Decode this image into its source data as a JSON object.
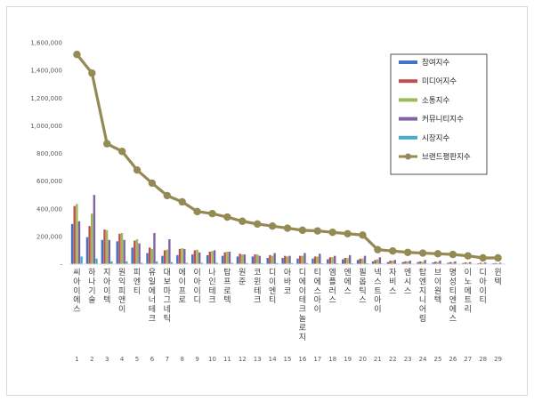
{
  "chart_data": {
    "type": "bar",
    "categories": [
      "씨아이에스",
      "하나기술",
      "지아이텍",
      "원익피앤이",
      "피엔티",
      "유일에너테크",
      "대보마그네틱",
      "에이프로",
      "이아이디",
      "나인테크",
      "탑프로텍",
      "원준",
      "코윈테크",
      "디이엔티",
      "아바코",
      "디에이테크놀로지",
      "티에스아이",
      "엠플러스",
      "엔에스",
      "필옵틱스",
      "넥스트아이",
      "자비스",
      "엔시스",
      "탑엔지니어링",
      "브이원텍",
      "명성티엔에스",
      "이노메트리",
      "디아이티",
      "윈텍"
    ],
    "category_numbers": [
      "1",
      "2",
      "3",
      "4",
      "5",
      "6",
      "7",
      "8",
      "9",
      "10",
      "11",
      "12",
      "13",
      "14",
      "15",
      "16",
      "17",
      "18",
      "19",
      "20",
      "21",
      "22",
      "23",
      "24",
      "25",
      "26",
      "27",
      "28",
      "29"
    ],
    "series": [
      {
        "name": "참여지수",
        "color": "#4472c4",
        "values": [
          290000,
          195000,
          175000,
          165000,
          120000,
          80000,
          60000,
          65000,
          70000,
          65000,
          60000,
          55000,
          55000,
          45000,
          45000,
          40000,
          40000,
          35000,
          35000,
          30000,
          20000,
          15000,
          15000,
          15000,
          12000,
          10000,
          8000,
          6000,
          6000
        ]
      },
      {
        "name": "미디어지수",
        "color": "#c0504d",
        "values": [
          420000,
          275000,
          250000,
          220000,
          170000,
          120000,
          100000,
          110000,
          100000,
          90000,
          85000,
          75000,
          70000,
          65000,
          60000,
          60000,
          55000,
          50000,
          45000,
          40000,
          30000,
          25000,
          20000,
          20000,
          18000,
          15000,
          12000,
          10000,
          8000
        ]
      },
      {
        "name": "소통지수",
        "color": "#9bbb59",
        "values": [
          435000,
          365000,
          245000,
          225000,
          180000,
          110000,
          105000,
          115000,
          105000,
          95000,
          90000,
          70000,
          70000,
          60000,
          55000,
          60000,
          55000,
          50000,
          45000,
          40000,
          35000,
          25000,
          20000,
          15000,
          15000,
          12000,
          10000,
          8000,
          6000
        ]
      },
      {
        "name": "커뮤니티지수",
        "color": "#8064a2",
        "values": [
          310000,
          500000,
          175000,
          175000,
          150000,
          225000,
          180000,
          110000,
          85000,
          100000,
          90000,
          70000,
          60000,
          80000,
          60000,
          80000,
          75000,
          60000,
          65000,
          60000,
          50000,
          30000,
          25000,
          30000,
          25000,
          20000,
          15000,
          12000,
          10000
        ]
      },
      {
        "name": "시장지수",
        "color": "#4bacc6",
        "values": [
          55000,
          40000,
          20000,
          20000,
          10000,
          20000,
          15000,
          10000,
          10000,
          10000,
          10000,
          8000,
          8000,
          8000,
          8000,
          8000,
          6000,
          6000,
          6000,
          6000,
          5000,
          4000,
          4000,
          4000,
          3000,
          3000,
          3000,
          2000,
          2000
        ]
      }
    ],
    "line_series": {
      "name": "브랜드평판지수",
      "color": "#948a54",
      "values": [
        1515000,
        1380000,
        870000,
        815000,
        680000,
        585000,
        495000,
        450000,
        380000,
        365000,
        340000,
        310000,
        290000,
        275000,
        260000,
        245000,
        240000,
        230000,
        220000,
        210000,
        105000,
        95000,
        85000,
        80000,
        75000,
        70000,
        60000,
        45000,
        45000
      ]
    },
    "y_ticks": [
      "-",
      "200,000",
      "400,000",
      "600,000",
      "800,000",
      "1,000,000",
      "1,200,000",
      "1,400,000",
      "1,600,000"
    ],
    "ylim": [
      0,
      1600000
    ],
    "legend_position": "top-right",
    "grid": false
  }
}
